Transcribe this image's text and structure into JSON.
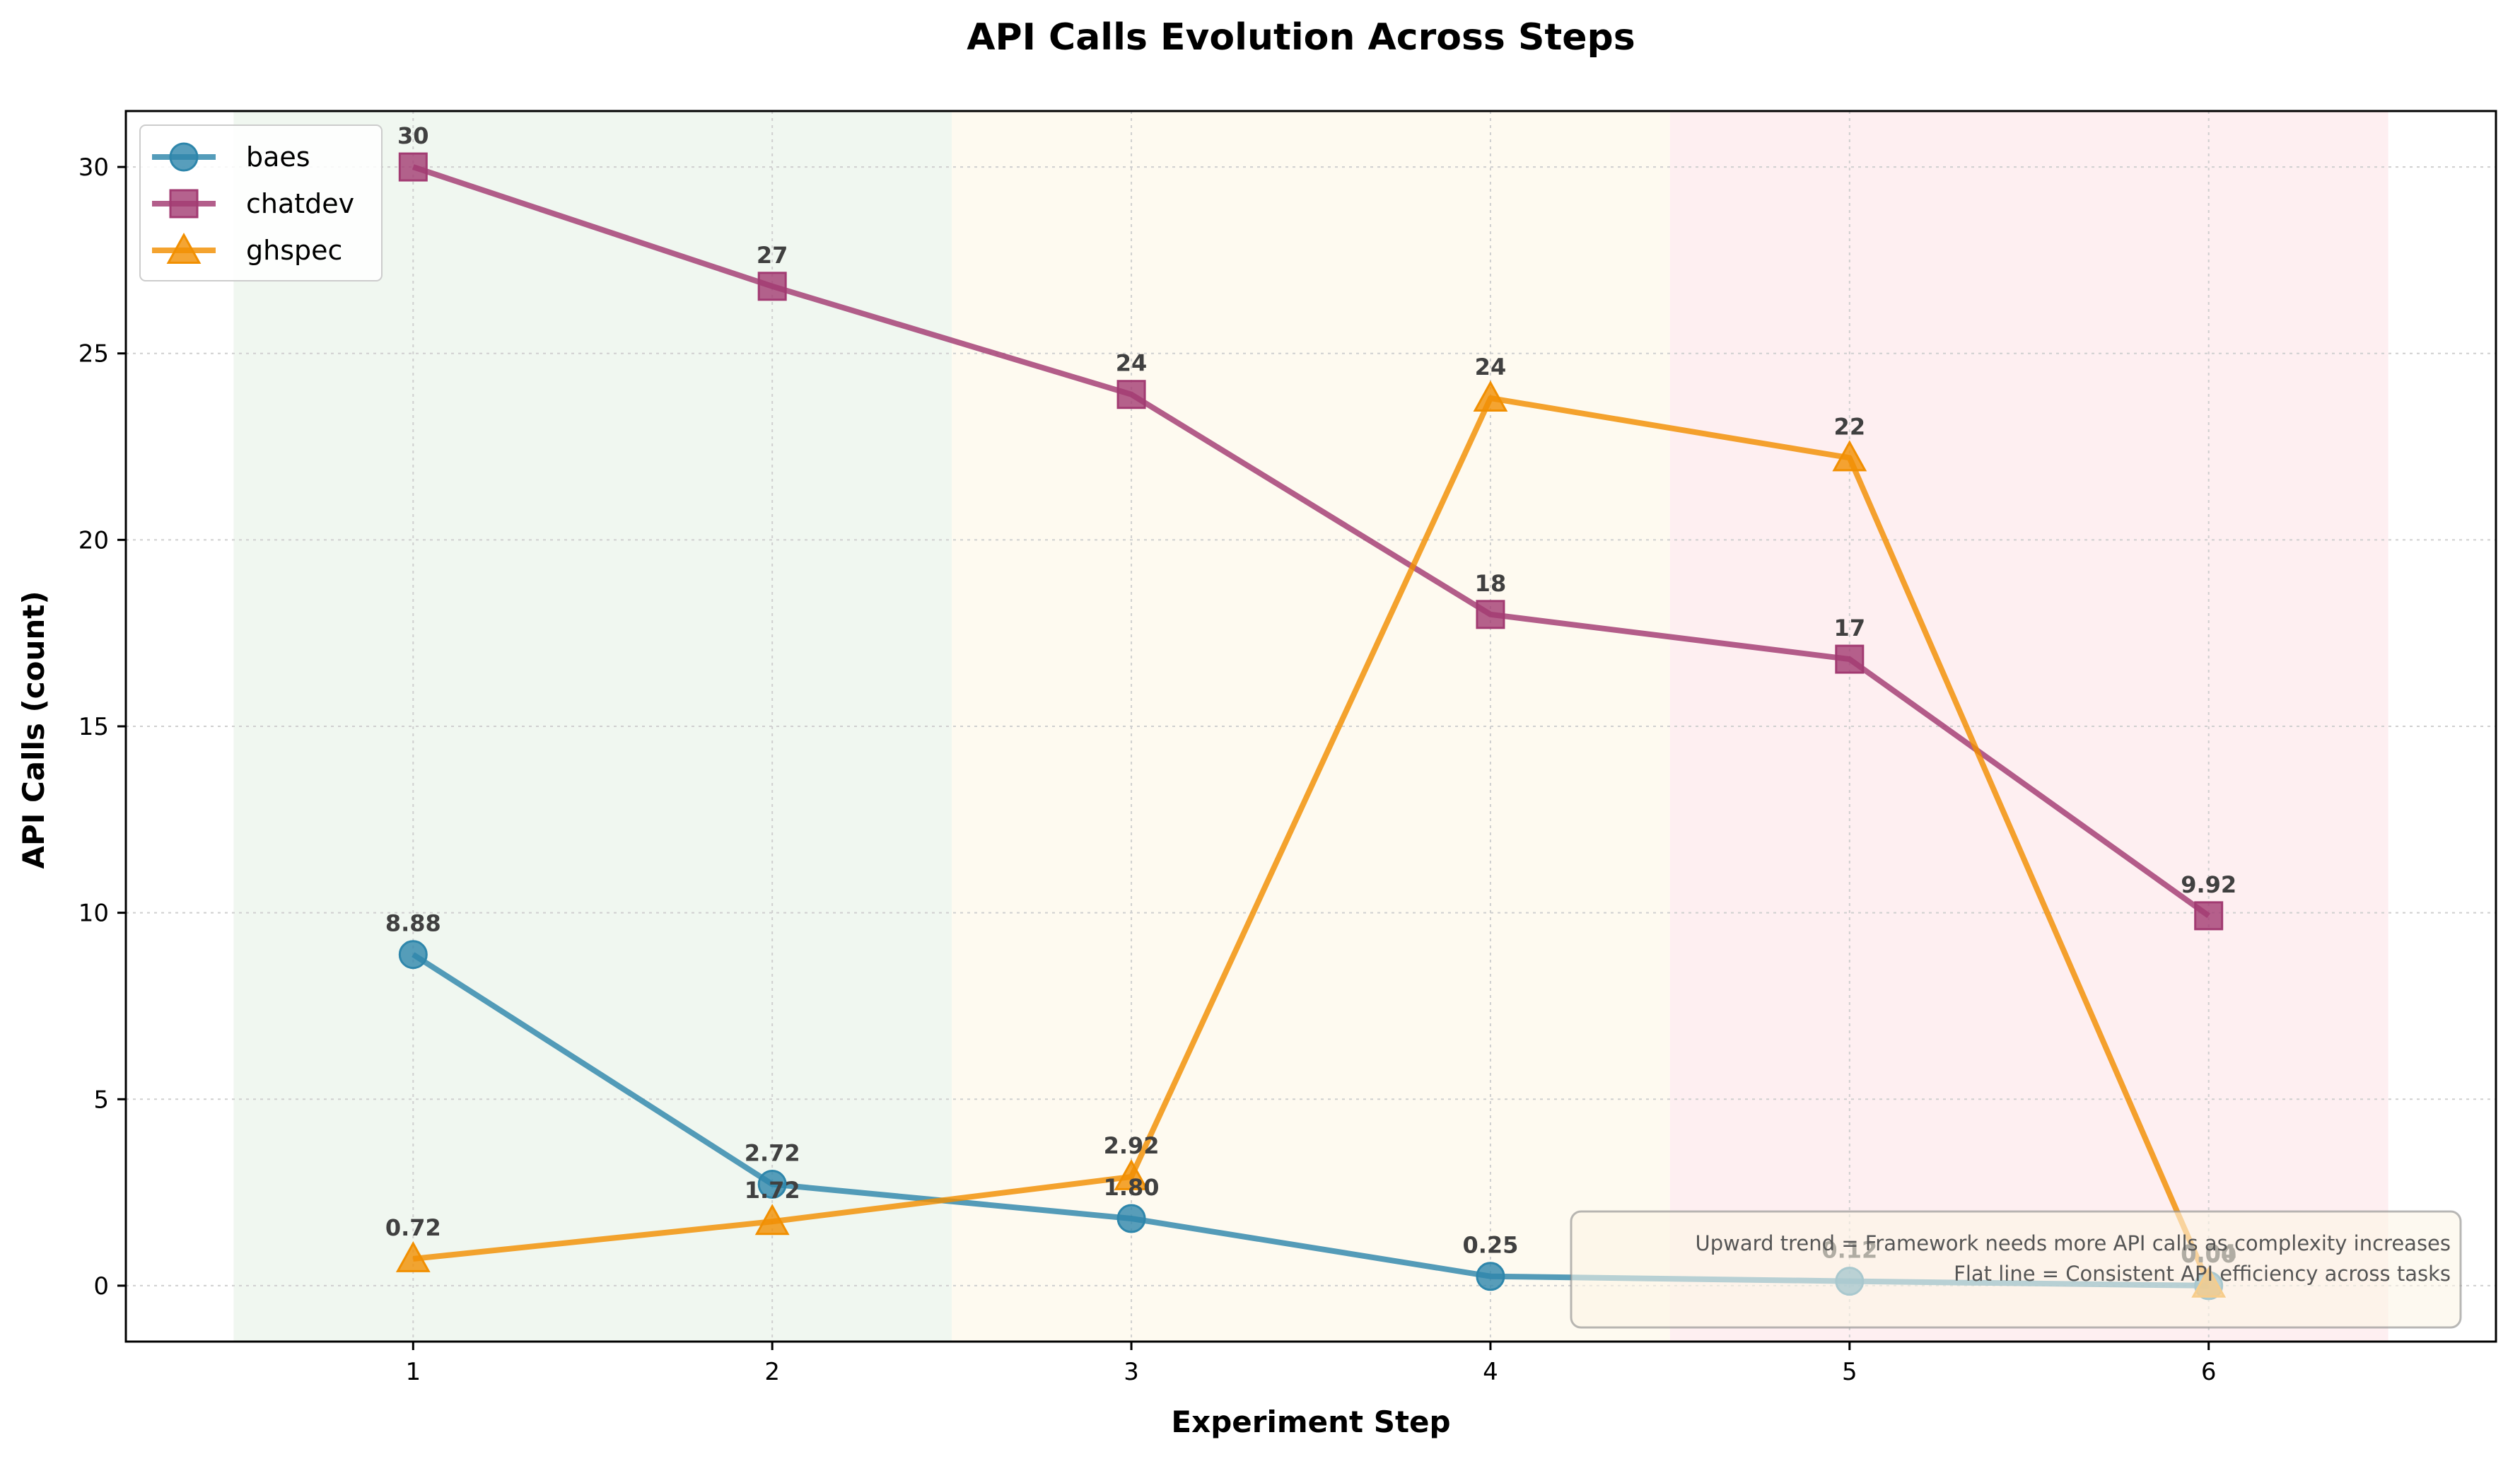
{
  "chart_data": {
    "type": "line",
    "title": "API Calls Evolution Across Steps",
    "xlabel": "Experiment Step",
    "ylabel": "API Calls (count)",
    "x": [
      1,
      2,
      3,
      4,
      5,
      6
    ],
    "xlim": [
      0.2,
      6.8
    ],
    "ylim": [
      -1.5,
      31.5
    ],
    "xticks": [
      1,
      2,
      3,
      4,
      5,
      6
    ],
    "yticks": [
      0,
      5,
      10,
      15,
      20,
      25,
      30
    ],
    "grid": true,
    "legend_position": "top-left",
    "phase_bands": [
      {
        "from": 0.5,
        "to": 2.5,
        "color": "#e6f2e6"
      },
      {
        "from": 2.5,
        "to": 4.5,
        "color": "#fdf6e6"
      },
      {
        "from": 4.5,
        "to": 6.5,
        "color": "#fde4e8"
      }
    ],
    "series": [
      {
        "name": "baes",
        "marker": "circle",
        "color": "#2e86ab",
        "values": [
          8.88,
          2.72,
          1.8,
          0.25,
          0.12,
          0.0
        ],
        "labels": [
          "8.88",
          "2.72",
          "1.80",
          "0.25",
          "0.12",
          "0.00"
        ]
      },
      {
        "name": "chatdev",
        "marker": "square",
        "color": "#a23b72",
        "values": [
          30,
          26.8,
          23.9,
          18,
          16.8,
          9.92
        ],
        "labels": [
          "30",
          "27",
          "24",
          "18",
          "17",
          "9.92"
        ]
      },
      {
        "name": "ghspec",
        "marker": "triangle",
        "color": "#f18f01",
        "values": [
          0.72,
          1.72,
          2.92,
          23.8,
          22.2,
          0.04
        ],
        "labels": [
          "0.72",
          "1.72",
          "2.92",
          "24",
          "22",
          "0.04"
        ]
      }
    ],
    "annotation": [
      "Upward trend = Framework needs more API calls as complexity increases",
      "Flat line = Consistent API efficiency across tasks"
    ]
  }
}
